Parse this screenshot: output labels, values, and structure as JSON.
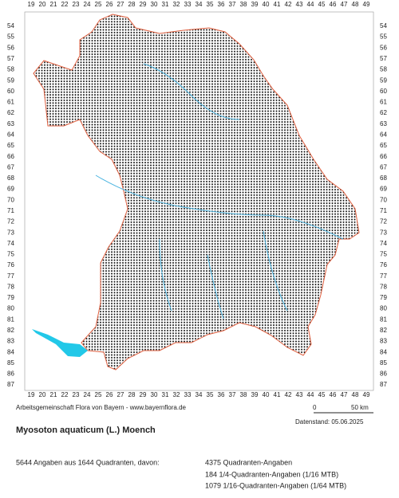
{
  "columns": [
    19,
    20,
    21,
    22,
    23,
    24,
    25,
    26,
    27,
    28,
    29,
    30,
    31,
    32,
    33,
    34,
    35,
    36,
    37,
    38,
    39,
    40,
    41,
    42,
    43,
    44,
    45,
    46,
    47,
    48,
    49
  ],
  "rows": [
    54,
    55,
    56,
    57,
    58,
    59,
    60,
    61,
    62,
    63,
    64,
    65,
    66,
    67,
    68,
    69,
    70,
    71,
    72,
    73,
    74,
    75,
    76,
    77,
    78,
    79,
    80,
    81,
    82,
    83,
    84,
    85,
    86,
    87
  ],
  "credit": "Arbeitsgemeinschaft Flora von Bayern - www.bayernflora.de",
  "scale": {
    "start": "0",
    "end": "50 km"
  },
  "date": "Datenstand: 05.06.2025",
  "title": "Myosoton aquaticum (L.) Moench",
  "stats": {
    "total": "5644 Angaben aus 1644 Quadranten, davon:",
    "lines": [
      "4375 Quadranten-Angaben",
      "184 1/4-Quadranten-Angaben (1/16 MTB)",
      "1079 1/16-Quadranten-Angaben (1/64 MTB)"
    ]
  }
}
